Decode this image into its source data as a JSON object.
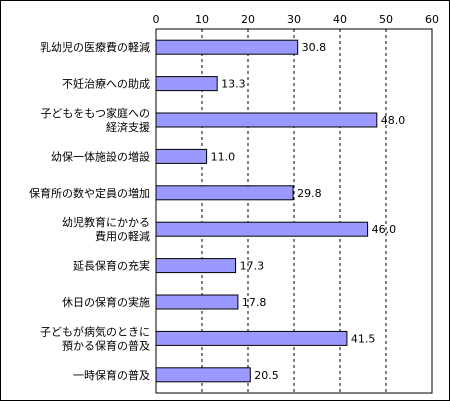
{
  "chart_data": {
    "type": "bar",
    "orientation": "horizontal",
    "title": "",
    "xlabel": "",
    "ylabel": "",
    "xlim": [
      0,
      60
    ],
    "x_ticks": [
      0,
      10,
      20,
      30,
      40,
      50,
      60
    ],
    "grid": "vertical dashed",
    "legend": "none",
    "categories": [
      [
        "乳幼児の医療費の軽減"
      ],
      [
        "不妊治療への助成"
      ],
      [
        "子どもをもつ家庭への",
        "経済支援"
      ],
      [
        "幼保一体施設の増設"
      ],
      [
        "保育所の数や定員の増加"
      ],
      [
        "幼児教育にかかる",
        "費用の軽減"
      ],
      [
        "延長保育の充実"
      ],
      [
        "休日の保育の実施"
      ],
      [
        "子どもが病気のときに",
        "預かる保育の普及"
      ],
      [
        "一時保育の普及"
      ]
    ],
    "values": [
      30.8,
      13.3,
      48.0,
      11.0,
      29.8,
      46.0,
      17.3,
      17.8,
      41.5,
      20.5
    ],
    "value_labels": [
      "30.8",
      "13.3",
      "48.0",
      "11.0",
      "29.8",
      "46.0",
      "17.3",
      "17.8",
      "41.5",
      "20.5"
    ],
    "colors": {
      "bar_fill": "#9999ff",
      "bar_stroke": "#000000",
      "grid": "#000000",
      "border": "#000000"
    }
  }
}
